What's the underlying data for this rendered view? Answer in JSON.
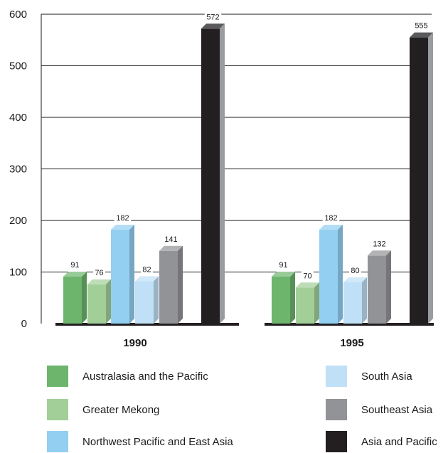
{
  "chart_data": {
    "type": "bar",
    "categories": [
      "1990",
      "1995"
    ],
    "series": [
      {
        "name": "Australasia and the Pacific",
        "values": [
          91,
          91
        ],
        "color": "#6db56d"
      },
      {
        "name": "Greater Mekong",
        "values": [
          76,
          70
        ],
        "color": "#a2cf97"
      },
      {
        "name": "Northwest Pacific and East Asia",
        "values": [
          182,
          182
        ],
        "color": "#93cff1"
      },
      {
        "name": "South Asia",
        "values": [
          82,
          80
        ],
        "color": "#bfe0f6"
      },
      {
        "name": "Southeast Asia",
        "values": [
          141,
          132
        ],
        "color": "#929396"
      },
      {
        "name": "Asia and Pacific",
        "values": [
          572,
          555
        ],
        "color": "#231f20"
      }
    ],
    "y_ticks": [
      "0",
      "100",
      "200",
      "300",
      "400",
      "500",
      "600"
    ],
    "ylim": [
      0,
      600
    ],
    "grid": true,
    "bar_style": "3d",
    "legend_position": "bottom"
  }
}
